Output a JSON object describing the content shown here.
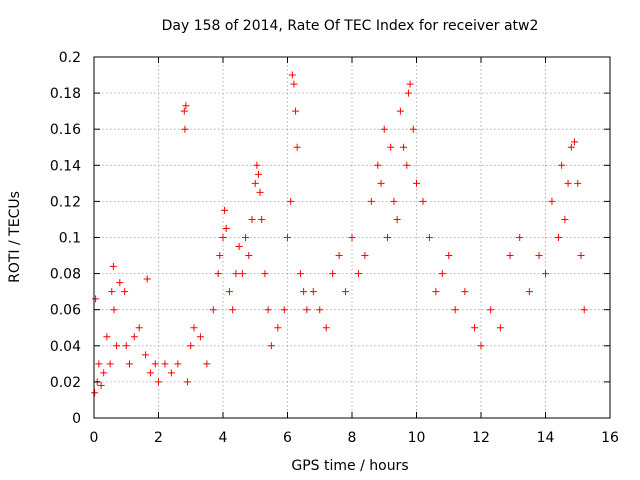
{
  "chart_data": {
    "type": "scatter",
    "title": "Day 158 of 2014, Rate Of TEC Index for receiver atw2",
    "xlabel": "GPS time / hours",
    "ylabel": "ROTI / TECUs",
    "xlim": [
      0,
      16
    ],
    "ylim": [
      0,
      0.2
    ],
    "xticks": [
      0,
      2,
      4,
      6,
      8,
      10,
      12,
      14,
      16
    ],
    "yticks": [
      0,
      0.02,
      0.04,
      0.06,
      0.08,
      0.1,
      0.12,
      0.14,
      0.16,
      0.18,
      0.2
    ],
    "xtick_labels": [
      "0",
      "2",
      "4",
      "6",
      "8",
      "10",
      "12",
      "14",
      "16"
    ],
    "ytick_labels": [
      "0",
      "0.02",
      "0.04",
      "0.06",
      "0.08",
      "0.1",
      "0.12",
      "0.14",
      "0.16",
      "0.18",
      "0.2"
    ],
    "grid": true,
    "marker": "+",
    "color": "#ff0000",
    "x_range_of_data": [
      0,
      15.25
    ],
    "series": [
      {
        "name": "ROTI",
        "x": [
          0.02,
          0.05,
          0.1,
          0.15,
          0.22,
          0.3,
          0.4,
          0.5,
          0.55,
          0.6,
          0.62,
          0.7,
          0.8,
          0.95,
          1.0,
          1.1,
          1.25,
          1.4,
          1.6,
          1.65,
          1.75,
          1.9,
          2.0,
          2.2,
          2.4,
          2.6,
          2.8,
          2.82,
          2.85,
          2.9,
          3.0,
          3.1,
          3.3,
          3.5,
          3.7,
          3.85,
          3.9,
          4.0,
          4.05,
          4.1,
          4.2,
          4.3,
          4.4,
          4.5,
          4.6,
          4.7,
          4.8,
          4.9,
          5.0,
          5.05,
          5.1,
          5.15,
          5.2,
          5.3,
          5.4,
          5.5,
          5.7,
          5.9,
          6.0,
          6.1,
          6.15,
          6.2,
          6.25,
          6.3,
          6.4,
          6.5,
          6.6,
          6.8,
          7.0,
          7.2,
          7.4,
          7.6,
          7.8,
          8.0,
          8.2,
          8.4,
          8.6,
          8.8,
          8.9,
          9.0,
          9.1,
          9.2,
          9.3,
          9.4,
          9.5,
          9.6,
          9.7,
          9.75,
          9.8,
          9.9,
          10.0,
          10.2,
          10.4,
          10.6,
          10.8,
          11.0,
          11.2,
          11.5,
          11.8,
          12.0,
          12.3,
          12.6,
          12.9,
          13.2,
          13.5,
          13.8,
          14.0,
          14.2,
          14.4,
          14.5,
          14.6,
          14.7,
          14.8,
          14.9,
          15.0,
          15.1,
          15.2
        ],
        "y": [
          0.014,
          0.066,
          0.02,
          0.03,
          0.018,
          0.025,
          0.045,
          0.03,
          0.07,
          0.084,
          0.06,
          0.04,
          0.075,
          0.07,
          0.04,
          0.03,
          0.045,
          0.05,
          0.035,
          0.077,
          0.025,
          0.03,
          0.02,
          0.03,
          0.025,
          0.03,
          0.17,
          0.16,
          0.173,
          0.02,
          0.04,
          0.05,
          0.045,
          0.03,
          0.06,
          0.08,
          0.09,
          0.1,
          0.115,
          0.105,
          0.07,
          0.06,
          0.08,
          0.095,
          0.08,
          0.1,
          0.09,
          0.11,
          0.13,
          0.14,
          0.135,
          0.125,
          0.11,
          0.08,
          0.06,
          0.04,
          0.05,
          0.06,
          0.1,
          0.12,
          0.19,
          0.185,
          0.17,
          0.15,
          0.08,
          0.07,
          0.06,
          0.07,
          0.06,
          0.05,
          0.08,
          0.09,
          0.07,
          0.1,
          0.08,
          0.09,
          0.12,
          0.14,
          0.13,
          0.16,
          0.1,
          0.15,
          0.12,
          0.11,
          0.17,
          0.15,
          0.14,
          0.18,
          0.185,
          0.16,
          0.13,
          0.12,
          0.1,
          0.07,
          0.08,
          0.09,
          0.06,
          0.07,
          0.05,
          0.04,
          0.06,
          0.05,
          0.09,
          0.1,
          0.07,
          0.09,
          0.08,
          0.12,
          0.1,
          0.14,
          0.11,
          0.13,
          0.15,
          0.153,
          0.13,
          0.09,
          0.06
        ]
      }
    ]
  }
}
